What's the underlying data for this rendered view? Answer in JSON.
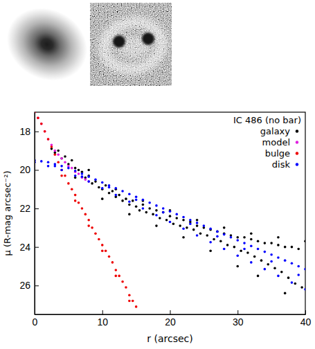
{
  "chart_data": {
    "type": "scatter",
    "title": "IC 486 (no bar)",
    "x_label": "r (arcsec)",
    "y_label": "μ (R-mag arcsec⁻²)",
    "xlim": [
      0,
      40
    ],
    "ylim": [
      27.5,
      17
    ],
    "xticks": [
      0,
      10,
      20,
      30,
      40
    ],
    "yticks": [
      18,
      20,
      22,
      24,
      26
    ],
    "legend": "upper right",
    "series": [
      {
        "name": "galaxy",
        "color": "#000000",
        "marker": "circle",
        "x": [
          2.5,
          3,
          3.5,
          4,
          4.5,
          5,
          5.5,
          6,
          6.5,
          7,
          7.5,
          8,
          8.5,
          9,
          9.5,
          10,
          10.5,
          11,
          11.5,
          12,
          12.5,
          13,
          13.5,
          14,
          14.5,
          15,
          15.5,
          16,
          16.5,
          17,
          17.5,
          18,
          18.5,
          19,
          19.5,
          20,
          20.5,
          21,
          21.5,
          22,
          22.5,
          23,
          23.5,
          24,
          24.5,
          25,
          25.5,
          26,
          26.5,
          27,
          27.5,
          28,
          28.5,
          29,
          29.5,
          30,
          30.5,
          31,
          31.5,
          32,
          32.5,
          33,
          33.5,
          34,
          34.5,
          35,
          35.5,
          36,
          36.5,
          37,
          37.5,
          38,
          38.5,
          39,
          39.5,
          8,
          12,
          16,
          20,
          24,
          28,
          32,
          36,
          40,
          33,
          37,
          30,
          26,
          22,
          18,
          14,
          10,
          6
        ],
        "values": [
          18.9,
          19.1,
          19.0,
          19.4,
          19.3,
          19.7,
          19.5,
          19.9,
          20.0,
          20.1,
          20.4,
          20.3,
          20.7,
          20.6,
          20.9,
          21.0,
          20.8,
          21.2,
          21.1,
          21.4,
          21.3,
          21.6,
          21.5,
          21.8,
          21.6,
          21.9,
          22.1,
          21.8,
          22.2,
          22.0,
          22.3,
          22.1,
          22.5,
          22.2,
          22.6,
          22.4,
          22.8,
          22.5,
          22.9,
          22.6,
          23.0,
          22.7,
          23.1,
          22.9,
          23.3,
          23.0,
          23.4,
          23.1,
          23.6,
          23.2,
          23.7,
          23.3,
          23.9,
          23.4,
          24.0,
          23.5,
          24.2,
          23.5,
          24.3,
          23.6,
          24.5,
          23.7,
          24.7,
          23.8,
          24.9,
          23.8,
          25.1,
          23.9,
          25.3,
          24.0,
          25.6,
          24.0,
          25.9,
          24.1,
          26.1,
          20.0,
          21.0,
          21.6,
          22.1,
          22.6,
          23.0,
          23.3,
          23.5,
          23.7,
          25.5,
          26.4,
          25.0,
          24.2,
          23.5,
          22.9,
          22.3,
          21.5,
          20.4
        ]
      },
      {
        "name": "model",
        "color": "#e020e0",
        "marker": "circle",
        "x": [
          0,
          0.5,
          1,
          1.5,
          2,
          2.5,
          3,
          3.5,
          4,
          4.5,
          5,
          5.5,
          6,
          6.5,
          7,
          7.5,
          8
        ],
        "values": [
          17.0,
          17.3,
          17.6,
          18.0,
          18.4,
          18.7,
          19.0,
          19.2,
          19.4,
          19.6,
          19.8,
          19.9,
          20.1,
          20.2,
          20.4,
          20.5,
          20.6
        ]
      },
      {
        "name": "bulge",
        "color": "#ee0000",
        "marker": "circle",
        "x": [
          0,
          0.5,
          1,
          1.5,
          2,
          2.5,
          3,
          3.5,
          4,
          4.5,
          5,
          5.5,
          6,
          6.5,
          7,
          7.5,
          8,
          8.5,
          9,
          9.5,
          10,
          10.5,
          11,
          11.5,
          12,
          12.5,
          13,
          13.5,
          14,
          14.5,
          15,
          4,
          6,
          8,
          10,
          12,
          14
        ],
        "values": [
          17.0,
          17.3,
          17.6,
          18.0,
          18.4,
          18.8,
          19.2,
          19.6,
          20.0,
          20.3,
          20.7,
          21.0,
          21.3,
          21.7,
          22.0,
          22.3,
          22.6,
          23.0,
          23.3,
          23.6,
          23.9,
          24.2,
          24.5,
          24.8,
          25.2,
          25.5,
          25.8,
          26.1,
          26.5,
          26.8,
          27.1,
          20.3,
          21.6,
          22.9,
          24.2,
          25.5,
          26.8
        ]
      },
      {
        "name": "disk",
        "color": "#0000ff",
        "marker": "circle",
        "x": [
          0,
          1,
          2,
          3,
          4,
          5,
          6,
          7,
          8,
          9,
          10,
          11,
          12,
          13,
          14,
          15,
          16,
          17,
          18,
          19,
          20,
          21,
          22,
          23,
          24,
          25,
          26,
          27,
          28,
          29,
          30,
          31,
          32,
          33,
          34,
          35,
          36,
          37,
          38,
          39,
          40,
          0,
          2,
          4,
          6,
          8,
          10,
          12,
          14,
          16,
          18,
          20,
          22,
          24,
          26,
          28,
          30,
          32,
          34,
          36,
          38,
          40,
          3,
          7,
          11,
          15,
          19,
          23,
          27,
          31,
          35,
          39
        ],
        "values": [
          19.5,
          19.55,
          19.6,
          19.7,
          19.8,
          19.9,
          20.05,
          20.2,
          20.35,
          20.5,
          20.65,
          20.8,
          20.95,
          21.1,
          21.25,
          21.4,
          21.55,
          21.7,
          21.85,
          22.0,
          22.15,
          22.3,
          22.45,
          22.6,
          22.75,
          22.9,
          23.05,
          23.2,
          23.35,
          23.5,
          23.65,
          23.8,
          23.95,
          24.1,
          24.25,
          24.4,
          24.55,
          24.7,
          24.85,
          25.0,
          25.15,
          19.6,
          19.8,
          20.0,
          20.3,
          20.6,
          20.95,
          21.3,
          21.65,
          22.0,
          22.35,
          22.7,
          23.05,
          23.4,
          23.75,
          24.1,
          24.45,
          24.8,
          25.15,
          25.5,
          25.85,
          26.2,
          19.8,
          20.35,
          20.9,
          21.55,
          22.2,
          22.8,
          23.45,
          24.1,
          24.75,
          25.45
        ]
      }
    ]
  }
}
